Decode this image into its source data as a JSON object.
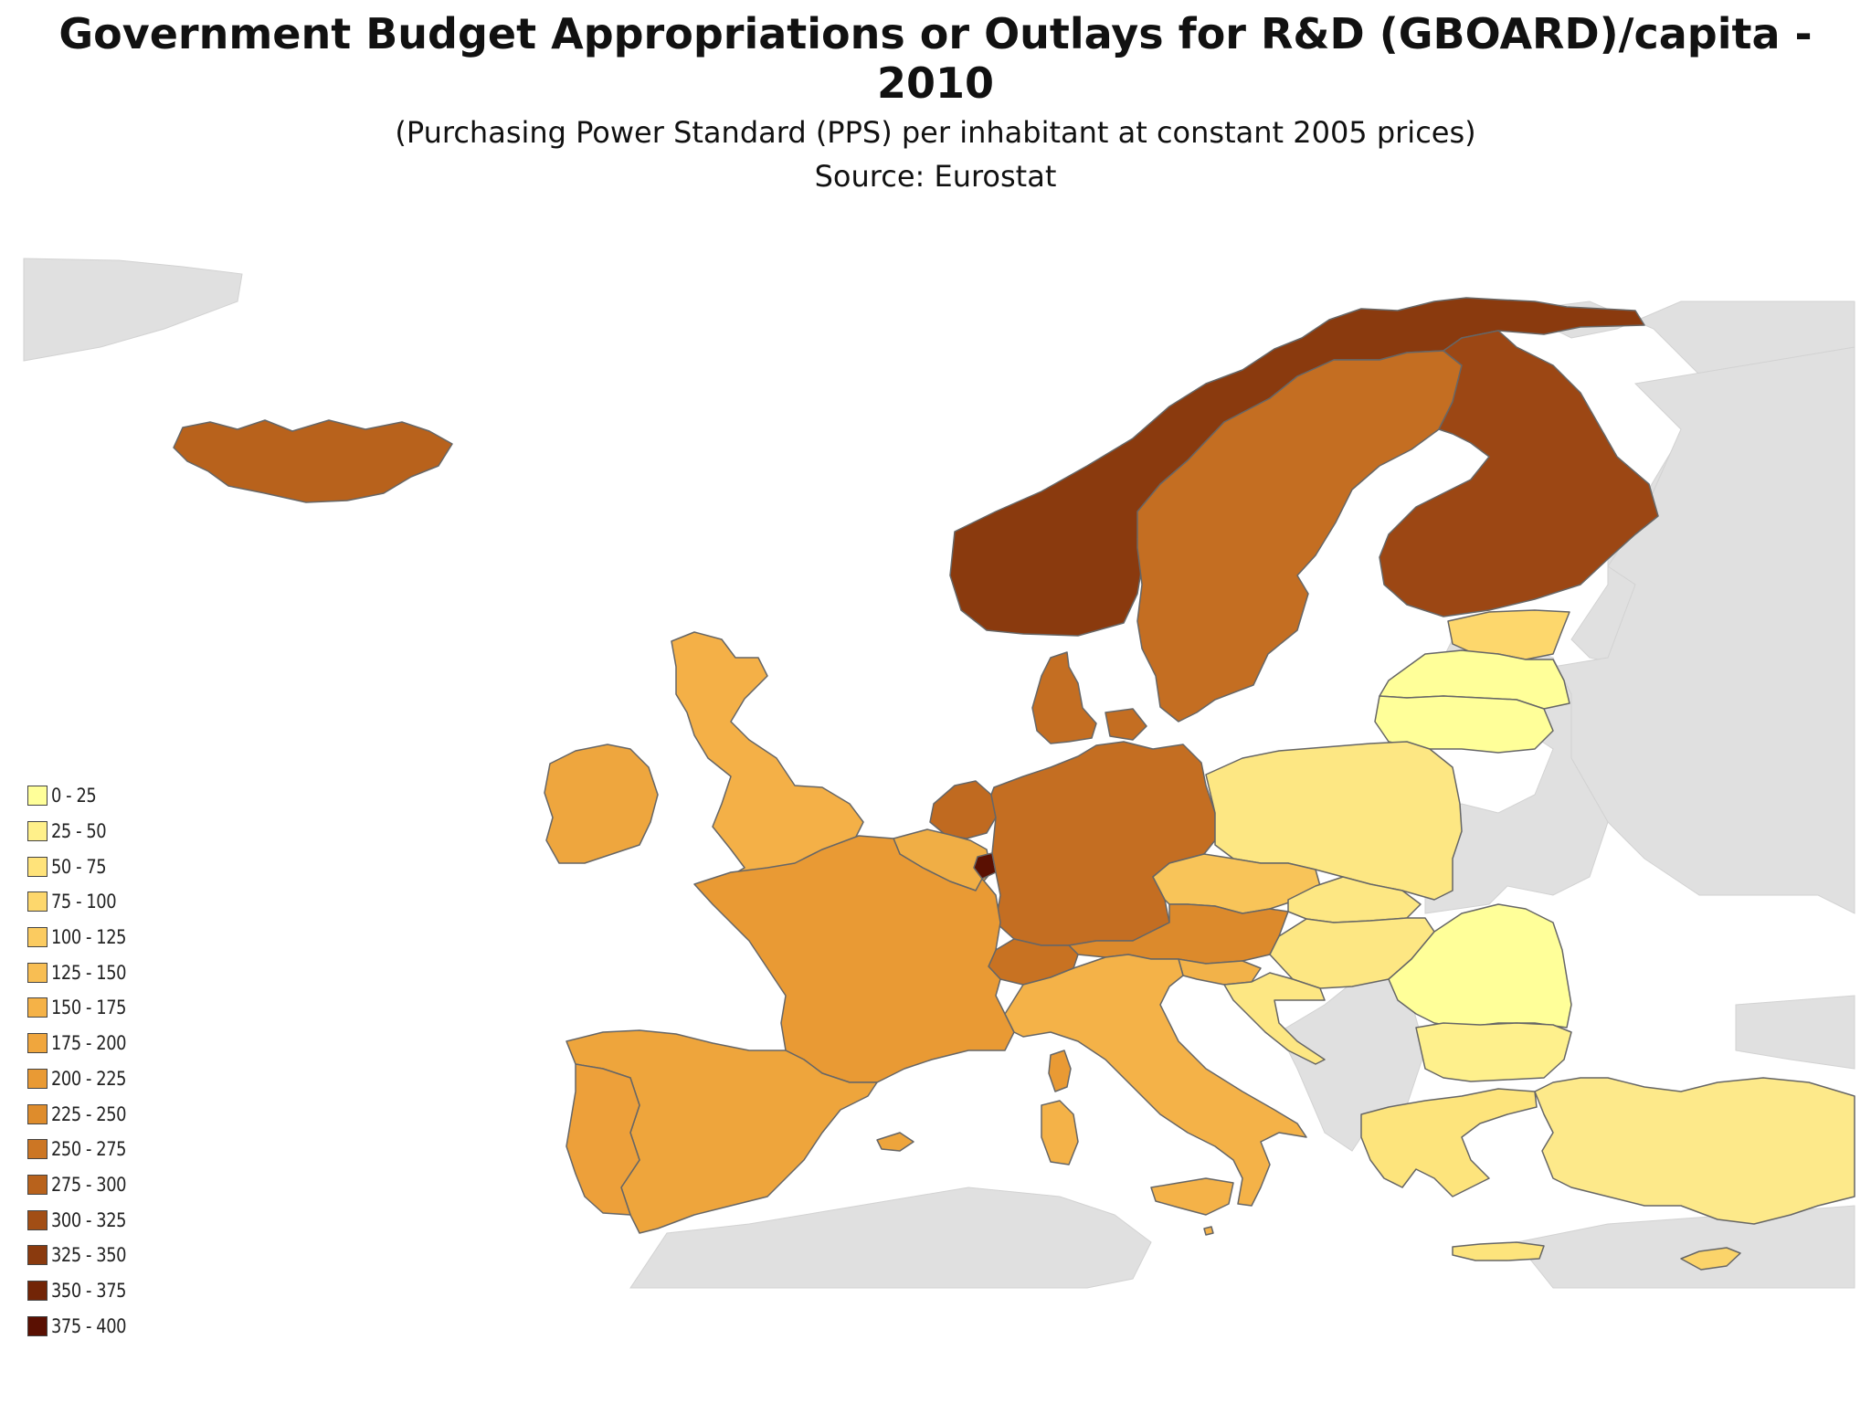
{
  "header": {
    "title": "Government Budget Appropriations or Outlays for R&D (GBOARD)/capita - 2010",
    "subtitle": "(Purchasing Power Standard (PPS) per inhabitant at constant 2005 prices)",
    "source": "Source: Eurostat"
  },
  "colors": {
    "sea": "#ffffff",
    "no_data": "#e0e0e0",
    "border": "#666666"
  },
  "legend": {
    "items": [
      {
        "label": "0 - 25",
        "color": "#ffff99"
      },
      {
        "label": "25 - 50",
        "color": "#fff08a"
      },
      {
        "label": "50 - 75",
        "color": "#ffe37a"
      },
      {
        "label": "75 - 100",
        "color": "#fdd76c"
      },
      {
        "label": "100 - 125",
        "color": "#fbcb60"
      },
      {
        "label": "125 - 150",
        "color": "#f8be53"
      },
      {
        "label": "150 - 175",
        "color": "#f5b247"
      },
      {
        "label": "175 - 200",
        "color": "#f0a63d"
      },
      {
        "label": "200 - 225",
        "color": "#e99a34"
      },
      {
        "label": "225 - 250",
        "color": "#de8c2c"
      },
      {
        "label": "250 - 275",
        "color": "#cc7624"
      },
      {
        "label": "275 - 300",
        "color": "#b8621c"
      },
      {
        "label": "300 - 325",
        "color": "#a24e15"
      },
      {
        "label": "325 - 350",
        "color": "#8a3a0e"
      },
      {
        "label": "350 - 375",
        "color": "#722507"
      },
      {
        "label": "375 - 400",
        "color": "#5a1002"
      }
    ]
  },
  "countries": [
    {
      "name": "Iceland",
      "class": "250 - 275",
      "color": "#b8621c"
    },
    {
      "name": "Norway",
      "class": "325 - 350",
      "color": "#8a3a0e"
    },
    {
      "name": "Sweden",
      "class": "250 - 275",
      "color": "#c46e22"
    },
    {
      "name": "Finland",
      "class": "300 - 325",
      "color": "#9c4714"
    },
    {
      "name": "Estonia",
      "class": "75 - 100",
      "color": "#fdd76c"
    },
    {
      "name": "Latvia",
      "class": "0 - 25",
      "color": "#ffff99"
    },
    {
      "name": "Lithuania",
      "class": "0 - 25",
      "color": "#ffff99"
    },
    {
      "name": "Denmark",
      "class": "250 - 275",
      "color": "#c46e22"
    },
    {
      "name": "United Kingdom",
      "class": "150 - 175",
      "color": "#f4b047"
    },
    {
      "name": "Ireland",
      "class": "175 - 200",
      "color": "#eea63e"
    },
    {
      "name": "Netherlands",
      "class": "250 - 275",
      "color": "#c06a20"
    },
    {
      "name": "Belgium",
      "class": "150 - 175",
      "color": "#f0ae45"
    },
    {
      "name": "Luxembourg",
      "class": "375 - 400",
      "color": "#5a1002"
    },
    {
      "name": "Germany",
      "class": "250 - 275",
      "color": "#c46e22"
    },
    {
      "name": "Poland",
      "class": "25 - 50",
      "color": "#fde783"
    },
    {
      "name": "Czech Republic",
      "class": "125 - 150",
      "color": "#f8c459"
    },
    {
      "name": "Slovakia",
      "class": "25 - 50",
      "color": "#fde783"
    },
    {
      "name": "Austria",
      "class": "225 - 250",
      "color": "#dc8a2c"
    },
    {
      "name": "Switzerland",
      "class": "250 - 275",
      "color": "#c87222"
    },
    {
      "name": "Hungary",
      "class": "25 - 50",
      "color": "#fde783"
    },
    {
      "name": "Slovenia",
      "class": "150 - 175",
      "color": "#f2b249"
    },
    {
      "name": "Croatia",
      "class": "25 - 50",
      "color": "#fde783"
    },
    {
      "name": "Romania",
      "class": "0 - 25",
      "color": "#ffff99"
    },
    {
      "name": "Bulgaria",
      "class": "25 - 50",
      "color": "#fef08c"
    },
    {
      "name": "Greece",
      "class": "50 - 75",
      "color": "#fde47c"
    },
    {
      "name": "Turkey",
      "class": "50 - 75",
      "color": "#fde98a"
    },
    {
      "name": "Cyprus",
      "class": "75 - 100",
      "color": "#fbd46a"
    },
    {
      "name": "France",
      "class": "200 - 225",
      "color": "#e99a34"
    },
    {
      "name": "Spain",
      "class": "175 - 200",
      "color": "#eea53c"
    },
    {
      "name": "Portugal",
      "class": "175 - 200",
      "color": "#eda03a"
    },
    {
      "name": "Italy",
      "class": "150 - 175",
      "color": "#f4b248"
    },
    {
      "name": "Malta",
      "class": "150 - 175",
      "color": "#f4b248"
    }
  ]
}
